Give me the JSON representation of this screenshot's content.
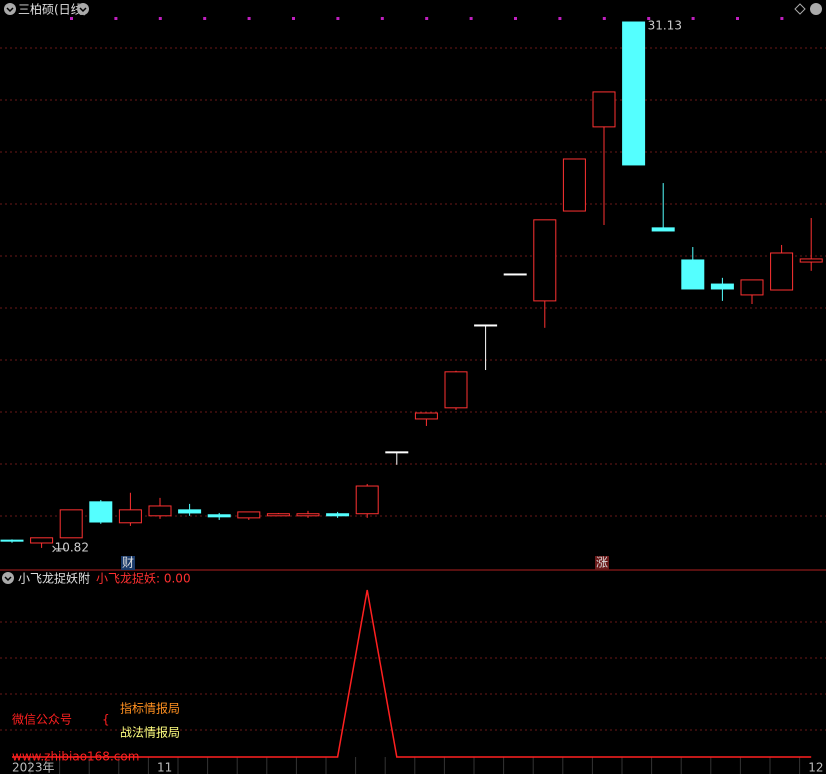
{
  "chart_data": [
    {
      "type": "candlestick",
      "title": "三柏硕(日线)",
      "categories": [
        "2023年",
        null,
        null,
        null,
        null,
        "11",
        null,
        null,
        null,
        null,
        null,
        null,
        null,
        null,
        null,
        null,
        null,
        null,
        null,
        null,
        null,
        null,
        null,
        null,
        null,
        null,
        null,
        "12"
      ],
      "open": [
        11.12,
        11.01,
        11.21,
        12.6,
        11.79,
        12.06,
        12.29,
        12.1,
        11.98,
        12.06,
        12.06,
        12.14,
        12.14,
        14.53,
        15.8,
        16.23,
        19.43,
        21.4,
        20.36,
        23.83,
        27.08,
        31.13,
        23.18,
        21.94,
        21.01,
        20.59,
        20.78,
        21.86
      ],
      "high": [
        11.15,
        11.21,
        12.29,
        12.67,
        12.95,
        12.75,
        12.52,
        12.17,
        12.21,
        12.17,
        12.25,
        12.21,
        13.29,
        14.53,
        16.03,
        17.66,
        19.43,
        21.4,
        23.49,
        25.84,
        28.43,
        31.13,
        24.91,
        22.44,
        21.25,
        21.17,
        22.52,
        23.56
      ],
      "low": [
        11.02,
        10.82,
        11.21,
        11.75,
        11.67,
        11.94,
        12.06,
        11.9,
        11.9,
        12.06,
        11.98,
        11.98,
        11.98,
        14.03,
        15.53,
        16.15,
        17.69,
        21.4,
        19.32,
        23.83,
        23.29,
        25.61,
        23.06,
        20.82,
        20.36,
        20.24,
        20.78,
        21.52
      ],
      "close": [
        11.08,
        11.21,
        12.29,
        11.82,
        12.29,
        12.44,
        12.17,
        12.02,
        12.21,
        12.14,
        12.14,
        12.06,
        13.21,
        14.53,
        16.03,
        17.62,
        19.43,
        21.4,
        23.49,
        25.84,
        28.43,
        25.61,
        23.06,
        20.82,
        20.82,
        21.17,
        22.21,
        21.98
      ],
      "up_color": "#ff3232",
      "down_color": "#54ffff",
      "flat_color": "#ffffff",
      "ylim": [
        10.16,
        31.98
      ],
      "max_label": 31.13,
      "min_label": 10.82,
      "markers": [
        "财",
        "涨"
      ]
    },
    {
      "type": "line",
      "title": "小飞龙捉妖附",
      "legend": "小飞龙捉妖: 0.00",
      "series": [
        {
          "name": "小飞龙捉妖",
          "color": "#ff2020",
          "values": [
            0,
            0,
            0,
            0,
            0,
            0,
            0,
            0,
            0,
            0,
            0,
            0,
            1,
            0,
            0,
            0,
            0,
            0,
            0,
            0,
            0,
            0,
            0,
            0,
            0,
            0,
            0,
            0
          ]
        }
      ],
      "ylim": [
        0,
        1
      ]
    }
  ],
  "watermark": {
    "label": "微信公众号",
    "brace": "{",
    "line1": "指标情报局",
    "line2": "战法情报局",
    "url": "www.zhibiao168.com"
  }
}
